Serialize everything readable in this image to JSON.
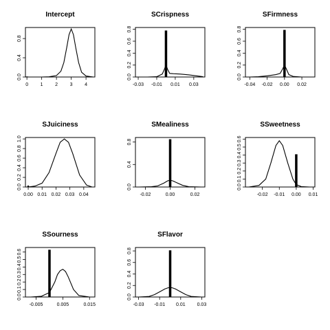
{
  "chart_data": [
    {
      "type": "line",
      "title": "Intercept",
      "xlim": [
        -0.1,
        4.6
      ],
      "ylim": [
        0,
        1.03
      ],
      "xticks": [
        0,
        1,
        2,
        3,
        4
      ],
      "xtick_labels": [
        "0",
        "1",
        "2",
        "3",
        "4"
      ],
      "yticks": [
        0,
        0.4,
        0.8
      ],
      "ytick_labels": [
        "0.0",
        "0.4",
        "0.8"
      ],
      "series": [
        {
          "x": [
            0,
            0.5,
            1,
            1.5,
            2,
            2.3,
            2.5,
            2.7,
            2.85,
            3,
            3.15,
            3.3,
            3.5,
            3.7,
            4,
            4.5
          ],
          "y": [
            0,
            0,
            0,
            0.005,
            0.03,
            0.12,
            0.3,
            0.62,
            0.88,
            1.0,
            0.88,
            0.62,
            0.3,
            0.1,
            0.02,
            0
          ]
        }
      ],
      "spike": {
        "x": 0,
        "height": 0.01
      }
    },
    {
      "type": "line",
      "title": "SCrispness",
      "xlim": [
        -0.033,
        0.042
      ],
      "ylim": [
        0,
        0.83
      ],
      "xticks": [
        -0.03,
        -0.01,
        0.01,
        0.03
      ],
      "xtick_labels": [
        "-0.03",
        "-0.01",
        "0.01",
        "0.03"
      ],
      "yticks": [
        0,
        0.2,
        0.4,
        0.6,
        0.8
      ],
      "ytick_labels": [
        "0.0",
        "0.2",
        "0.4",
        "0.6",
        "0.8"
      ],
      "series": [
        {
          "x": [
            -0.03,
            -0.02,
            -0.01,
            -0.004,
            -0.002,
            0,
            0.002,
            0.004,
            0.008,
            0.015,
            0.025,
            0.035,
            0.04
          ],
          "y": [
            0,
            0,
            0.005,
            0.05,
            0.12,
            0.2,
            0.12,
            0.06,
            0.055,
            0.05,
            0.035,
            0.015,
            0.005
          ]
        }
      ],
      "spike": {
        "x": 0,
        "height": 0.78
      }
    },
    {
      "type": "line",
      "title": "SFirmness",
      "xlim": [
        -0.045,
        0.035
      ],
      "ylim": [
        0,
        0.83
      ],
      "xticks": [
        -0.04,
        -0.02,
        0,
        0.02
      ],
      "xtick_labels": [
        "-0.04",
        "-0.02",
        "0.00",
        "0.02"
      ],
      "yticks": [
        0,
        0.2,
        0.4,
        0.6,
        0.8
      ],
      "ytick_labels": [
        "0.0",
        "0.2",
        "0.4",
        "0.6",
        "0.8"
      ],
      "series": [
        {
          "x": [
            -0.04,
            -0.03,
            -0.02,
            -0.01,
            -0.005,
            -0.002,
            0,
            0.002,
            0.005,
            0.01,
            0.02,
            0.03
          ],
          "y": [
            0,
            0.005,
            0.02,
            0.04,
            0.06,
            0.14,
            0.2,
            0.14,
            0.04,
            0.01,
            0,
            0
          ]
        }
      ],
      "spike": {
        "x": 0,
        "height": 0.79
      }
    },
    {
      "type": "line",
      "title": "SJuiciness",
      "xlim": [
        -0.002,
        0.048
      ],
      "ylim": [
        0,
        1.03
      ],
      "xticks": [
        0,
        0.01,
        0.02,
        0.03,
        0.04
      ],
      "xtick_labels": [
        "0.00",
        "0.01",
        "0.02",
        "0.03",
        "0.04"
      ],
      "yticks": [
        0,
        0.2,
        0.4,
        0.6,
        0.8,
        1.0
      ],
      "ytick_labels": [
        "0.0",
        "0.2",
        "0.4",
        "0.6",
        "0.8",
        "1.0"
      ],
      "series": [
        {
          "x": [
            0,
            0.005,
            0.01,
            0.015,
            0.02,
            0.023,
            0.026,
            0.029,
            0.032,
            0.037,
            0.042,
            0.046
          ],
          "y": [
            0,
            0.02,
            0.08,
            0.3,
            0.7,
            0.93,
            1.0,
            0.93,
            0.7,
            0.25,
            0.04,
            0
          ]
        }
      ],
      "spike": {
        "x": 0,
        "height": 0
      }
    },
    {
      "type": "line",
      "title": "SMealiness",
      "xlim": [
        -0.028,
        0.028
      ],
      "ylim": [
        0,
        0.88
      ],
      "xticks": [
        -0.02,
        0,
        0.02
      ],
      "xtick_labels": [
        "-0.02",
        "0.00",
        "0.02"
      ],
      "yticks": [
        0,
        0.4,
        0.8
      ],
      "ytick_labels": [
        "0.0",
        "0.4",
        "0.8"
      ],
      "series": [
        {
          "x": [
            -0.025,
            -0.015,
            -0.01,
            -0.005,
            -0.002,
            0,
            0.002,
            0.005,
            0.01,
            0.015,
            0.025
          ],
          "y": [
            0,
            0.005,
            0.02,
            0.07,
            0.11,
            0.12,
            0.11,
            0.08,
            0.03,
            0.005,
            0
          ]
        }
      ],
      "spike": {
        "x": 0,
        "height": 0.85
      }
    },
    {
      "type": "line",
      "title": "SSweetness",
      "xlim": [
        -0.03,
        0.011
      ],
      "ylim": [
        0,
        0.62
      ],
      "xticks": [
        -0.02,
        -0.01,
        0,
        0.01
      ],
      "xtick_labels": [
        "-0.02",
        "-0.01",
        "0.00",
        "0.01"
      ],
      "yticks": [
        0,
        0.1,
        0.2,
        0.3,
        0.4,
        0.5,
        0.6
      ],
      "ytick_labels": [
        "0.0",
        "0.1",
        "0.2",
        "0.3",
        "0.4",
        "0.5",
        "0.6"
      ],
      "series": [
        {
          "x": [
            -0.028,
            -0.022,
            -0.018,
            -0.015,
            -0.012,
            -0.01,
            -0.008,
            -0.005,
            -0.002,
            0,
            0.003,
            0.008
          ],
          "y": [
            0,
            0.02,
            0.1,
            0.3,
            0.52,
            0.58,
            0.52,
            0.3,
            0.1,
            0.03,
            0.005,
            0
          ]
        }
      ],
      "spike": {
        "x": 0,
        "height": 0.41
      }
    },
    {
      "type": "line",
      "title": "SSourness",
      "xlim": [
        -0.009,
        0.017
      ],
      "ylim": [
        0,
        0.66
      ],
      "xticks": [
        -0.005,
        0.005,
        0.015
      ],
      "xtick_labels": [
        "-0.005",
        "0.005",
        "0.015"
      ],
      "yticks": [
        0,
        0.1,
        0.2,
        0.3,
        0.4,
        0.5,
        0.6
      ],
      "ytick_labels": [
        "0.0",
        "0.1",
        "0.2",
        "0.3",
        "0.4",
        "0.5",
        "0.6"
      ],
      "series": [
        {
          "x": [
            -0.007,
            -0.003,
            0,
            0.002,
            0.003,
            0.004,
            0.005,
            0.006,
            0.007,
            0.009,
            0.011,
            0.015
          ],
          "y": [
            0,
            0.01,
            0.06,
            0.2,
            0.3,
            0.35,
            0.37,
            0.34,
            0.27,
            0.1,
            0.02,
            0
          ]
        }
      ],
      "spike": {
        "x": 0,
        "height": 0.63
      }
    },
    {
      "type": "line",
      "title": "SFlavor",
      "xlim": [
        -0.033,
        0.033
      ],
      "ylim": [
        0,
        0.86
      ],
      "xticks": [
        -0.03,
        -0.01,
        0.01,
        0.03
      ],
      "xtick_labels": [
        "-0.03",
        "-0.01",
        "0.01",
        "0.03"
      ],
      "yticks": [
        0,
        0.2,
        0.4,
        0.6,
        0.8
      ],
      "ytick_labels": [
        "0.0",
        "0.2",
        "0.4",
        "0.6",
        "0.8"
      ],
      "series": [
        {
          "x": [
            -0.03,
            -0.02,
            -0.015,
            -0.01,
            -0.005,
            -0.002,
            0,
            0.002,
            0.005,
            0.01,
            0.015,
            0.02,
            0.03
          ],
          "y": [
            0,
            0.01,
            0.04,
            0.09,
            0.14,
            0.16,
            0.165,
            0.16,
            0.14,
            0.09,
            0.04,
            0.01,
            0
          ]
        }
      ],
      "spike": {
        "x": 0,
        "height": 0.81
      }
    }
  ]
}
